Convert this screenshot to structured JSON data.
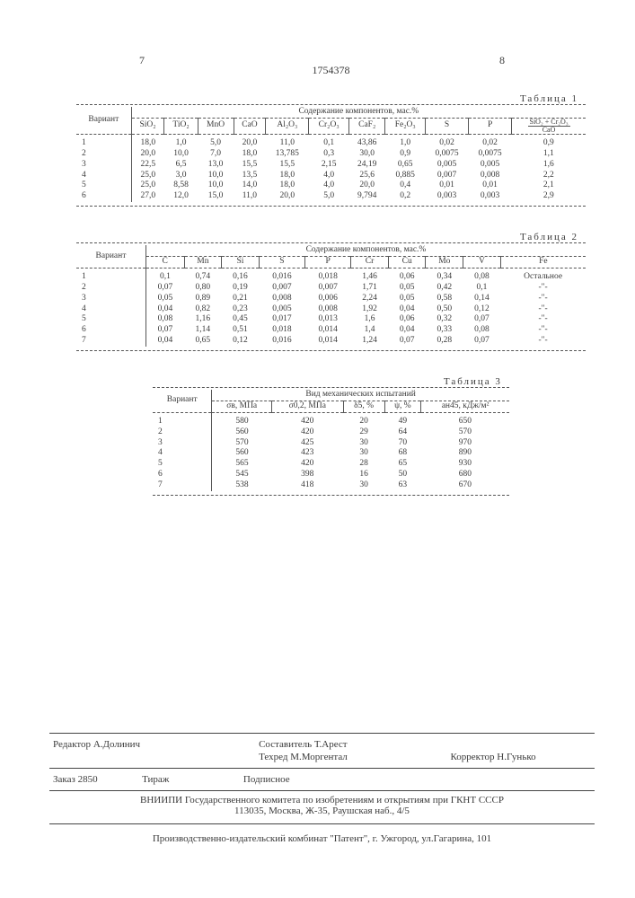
{
  "page_left_num": "7",
  "page_right_num": "8",
  "doc_number": "1754378",
  "table1": {
    "title": "Таблица 1",
    "variant_label": "Вариант",
    "group_header": "Содержание компонентов, мас.%",
    "headers": [
      "SiO₂",
      "TiO₂",
      "MnO",
      "CaO",
      "Al₂O₃",
      "Cr₂O₃",
      "CaF₂",
      "Fe₂O₃",
      "S",
      "P"
    ],
    "ratio_num": "SiO₂ + Cr₂O₃",
    "ratio_den": "CaO",
    "rows": [
      [
        "1",
        "18,0",
        "1,0",
        "5,0",
        "20,0",
        "11,0",
        "0,1",
        "43,86",
        "1,0",
        "0,02",
        "0,02",
        "0,9"
      ],
      [
        "2",
        "20,0",
        "10,0",
        "7,0",
        "18,0",
        "13,785",
        "0,3",
        "30,0",
        "0,9",
        "0,0075",
        "0,0075",
        "1,1"
      ],
      [
        "3",
        "22,5",
        "6,5",
        "13,0",
        "15,5",
        "15,5",
        "2,15",
        "24,19",
        "0,65",
        "0,005",
        "0,005",
        "1,6"
      ],
      [
        "4",
        "25,0",
        "3,0",
        "10,0",
        "13,5",
        "18,0",
        "4,0",
        "25,6",
        "0,885",
        "0,007",
        "0,008",
        "2,2"
      ],
      [
        "5",
        "25,0",
        "8,58",
        "10,0",
        "14,0",
        "18,0",
        "4,0",
        "20,0",
        "0,4",
        "0,01",
        "0,01",
        "2,1"
      ],
      [
        "6",
        "27,0",
        "12,0",
        "15,0",
        "11,0",
        "20,0",
        "5,0",
        "9,794",
        "0,2",
        "0,003",
        "0,003",
        "2,9"
      ]
    ]
  },
  "table2": {
    "title": "Таблица 2",
    "variant_label": "Вариант",
    "group_header": "Содержание компонентов, мас.%",
    "headers": [
      "C",
      "Mn",
      "Si",
      "S",
      "P",
      "Cr",
      "Cu",
      "Mo",
      "V",
      "Fe"
    ],
    "rows": [
      [
        "1",
        "0,1",
        "0,74",
        "0,16",
        "0,016",
        "0,018",
        "1,46",
        "0,06",
        "0,34",
        "0,08",
        "Остальное"
      ],
      [
        "2",
        "0,07",
        "0,80",
        "0,19",
        "0,007",
        "0,007",
        "1,71",
        "0,05",
        "0,42",
        "0,1",
        "-\"-"
      ],
      [
        "3",
        "0,05",
        "0,89",
        "0,21",
        "0,008",
        "0,006",
        "2,24",
        "0,05",
        "0,58",
        "0,14",
        "-\"-"
      ],
      [
        "4",
        "0,04",
        "0,82",
        "0,23",
        "0,005",
        "0,008",
        "1,92",
        "0,04",
        "0,50",
        "0,12",
        "-\"-"
      ],
      [
        "5",
        "0,08",
        "1,16",
        "0,45",
        "0,017",
        "0,013",
        "1,6",
        "0,06",
        "0,32",
        "0,07",
        "-\"-"
      ],
      [
        "6",
        "0,07",
        "1,14",
        "0,51",
        "0,018",
        "0,014",
        "1,4",
        "0,04",
        "0,33",
        "0,08",
        "-\"-"
      ],
      [
        "7",
        "0,04",
        "0,65",
        "0,12",
        "0,016",
        "0,014",
        "1,24",
        "0,07",
        "0,28",
        "0,07",
        "-\"-"
      ]
    ]
  },
  "table3": {
    "title": "Таблица 3",
    "variant_label": "Вариант",
    "group_header": "Вид механических испытаний",
    "headers": [
      "σв, МПа",
      "σ0,2, МПа",
      "δ5, %",
      "ψ, %",
      "aн45, кДж/м²"
    ],
    "rows": [
      [
        "1",
        "580",
        "420",
        "20",
        "49",
        "650"
      ],
      [
        "2",
        "560",
        "420",
        "29",
        "64",
        "570"
      ],
      [
        "3",
        "570",
        "425",
        "30",
        "70",
        "970"
      ],
      [
        "4",
        "560",
        "423",
        "30",
        "68",
        "890"
      ],
      [
        "5",
        "565",
        "420",
        "28",
        "65",
        "930"
      ],
      [
        "6",
        "545",
        "398",
        "16",
        "50",
        "680"
      ],
      [
        "7",
        "538",
        "418",
        "30",
        "63",
        "670"
      ]
    ]
  },
  "footer": {
    "editor_label": "Редактор",
    "editor": "А.Долинич",
    "compiler_label": "Составитель",
    "compiler": "Т.Арест",
    "tech_label": "Техред",
    "tech": "М.Моргентал",
    "corrector_label": "Корректор",
    "corrector": "Н.Гунько",
    "order_label": "Заказ",
    "order_num": "2850",
    "tirazh": "Тираж",
    "podpisnoe": "Подписное",
    "vniipi": "ВНИИПИ Государственного комитета по изобретениям и открытиям при ГКНТ СССР",
    "address": "113035, Москва, Ж-35, Раушская наб., 4/5",
    "bottom": "Производственно-издательский комбинат \"Патент\", г. Ужгород, ул.Гагарина, 101"
  }
}
